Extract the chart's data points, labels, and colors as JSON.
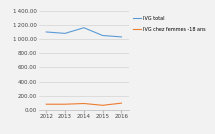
{
  "years": [
    2012,
    2013,
    2014,
    2015,
    2016
  ],
  "ivg_total": [
    1100,
    1080,
    1160,
    1050,
    1030
  ],
  "ivg_moins18": [
    80,
    80,
    90,
    65,
    95
  ],
  "color_total": "#5B9BD5",
  "color_moins18": "#ED7D31",
  "ylim": [
    0,
    1400
  ],
  "yticks": [
    0,
    200,
    400,
    600,
    800,
    1000,
    1200,
    1400
  ],
  "legend_total": "IVG total",
  "legend_moins18": "IVG chez femmes -18 ans",
  "background_color": "#F2F2F2",
  "plot_bg_color": "#F2F2F2"
}
